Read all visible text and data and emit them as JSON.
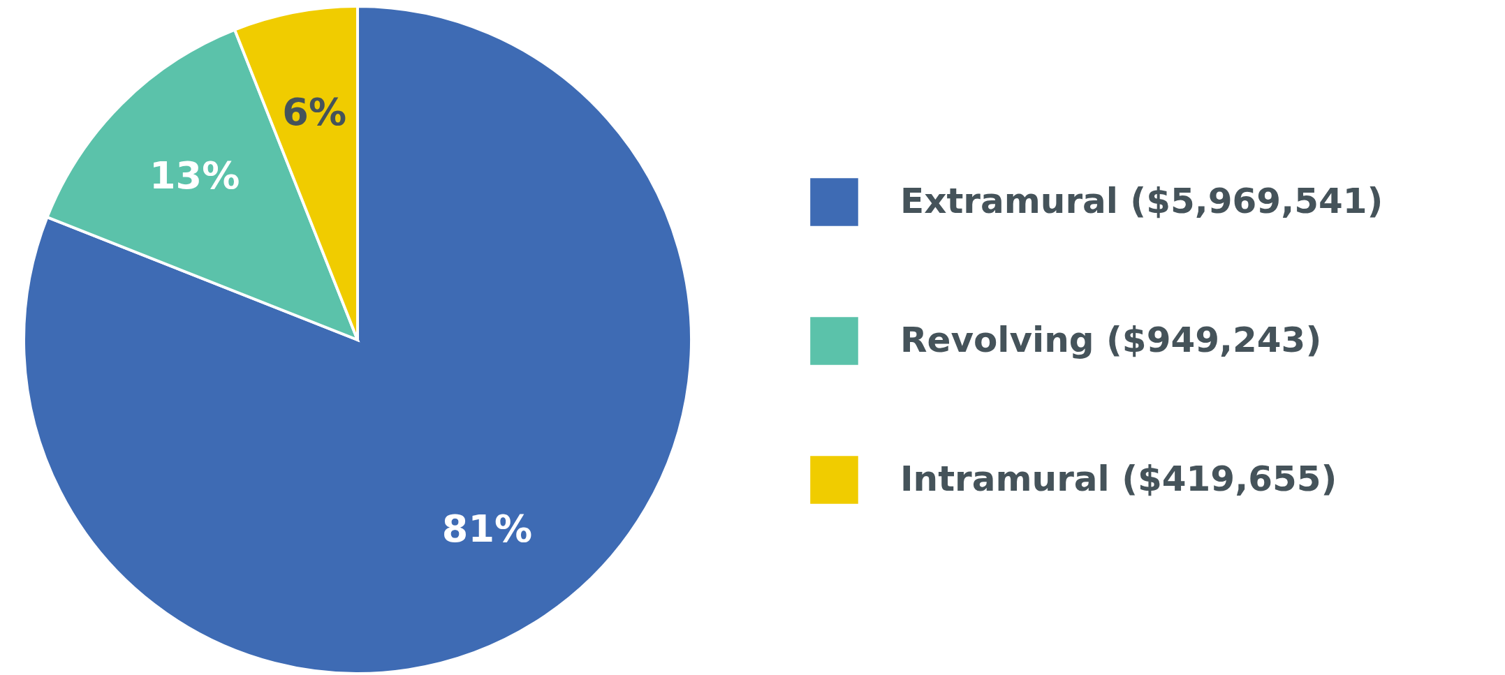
{
  "chart_data": {
    "type": "pie",
    "categories": [
      "Extramural ($5,969,541)",
      "Revolving ($949,243)",
      "Intramural ($419,655)"
    ],
    "values": [
      81,
      13,
      6
    ],
    "colors": [
      "#3e6bb4",
      "#5bc2aa",
      "#f0cc00"
    ],
    "value_labels": [
      "81%",
      "13%",
      "6%"
    ],
    "legend": "right"
  }
}
